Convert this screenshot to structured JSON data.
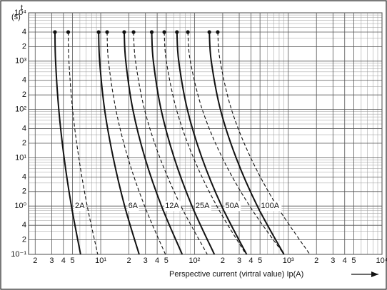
{
  "chart_data": {
    "type": "line",
    "ylabel": "t",
    "yunit": "(s)",
    "xlabel": "Perspective current (virtral value) Ip(A)",
    "xscale": "log",
    "yscale": "log",
    "grid": true,
    "color": "#111111",
    "xlim": [
      1.7,
      10000
    ],
    "ylim": [
      0.1,
      10000
    ],
    "xticks": [
      2,
      3,
      4,
      5,
      {
        "value": 10,
        "label": "10¹"
      },
      {
        "value": 20,
        "label": "2"
      },
      {
        "value": 30,
        "label": "3"
      },
      {
        "value": 40,
        "label": "4"
      },
      {
        "value": 50,
        "label": "5"
      },
      {
        "value": 100,
        "label": "10²"
      },
      {
        "value": 200,
        "label": "2"
      },
      {
        "value": 300,
        "label": "3"
      },
      {
        "value": 400,
        "label": "4"
      },
      {
        "value": 500,
        "label": "5"
      },
      {
        "value": 1000,
        "label": "10³"
      },
      {
        "value": 2000,
        "label": "2"
      },
      {
        "value": 3000,
        "label": "3"
      },
      {
        "value": 4000,
        "label": "4"
      },
      {
        "value": 5000,
        "label": "5"
      },
      {
        "value": 10000,
        "label": "10⁴"
      }
    ],
    "xminorticks": [
      6,
      7,
      8,
      9,
      60,
      70,
      80,
      90,
      600,
      700,
      800,
      900,
      6000,
      7000,
      8000,
      9000
    ],
    "yticks": [
      {
        "value": 10000,
        "label": "10⁴"
      },
      {
        "value": 4000,
        "label": "4"
      },
      {
        "value": 2000,
        "label": "2"
      },
      {
        "value": 1000,
        "label": "10³"
      },
      {
        "value": 400,
        "label": "4"
      },
      {
        "value": 200,
        "label": "2"
      },
      {
        "value": 100,
        "label": "10²"
      },
      {
        "value": 40,
        "label": "4"
      },
      {
        "value": 20,
        "label": "2"
      },
      {
        "value": 10,
        "label": "10¹"
      },
      4,
      2,
      {
        "value": 1,
        "label": "10⁰"
      },
      {
        "value": 0.4,
        "label": "4"
      },
      {
        "value": 0.2,
        "label": "2"
      },
      {
        "value": 0.1,
        "label": "10⁻¹"
      }
    ],
    "yminorticks": [
      3000,
      5000,
      6000,
      7000,
      8000,
      9000,
      300,
      500,
      600,
      700,
      800,
      900,
      30,
      50,
      60,
      70,
      80,
      90,
      3,
      5,
      6,
      7,
      8,
      9,
      0.3,
      0.5,
      0.6,
      0.7,
      0.8,
      0.9
    ],
    "series": [
      {
        "name": "2A",
        "curves": [
          {
            "style": "solid",
            "x": [
              3.25,
              3.3,
              3.57,
              4.07,
              4.87,
              6.1
            ],
            "values": [
              4000,
              1000,
              100,
              10,
              1,
              0.1
            ]
          },
          {
            "style": "dashed",
            "x": [
              4.5,
              4.58,
              5.01,
              5.84,
              7.18,
              9.3
            ],
            "values": [
              4000,
              1000,
              100,
              10,
              1,
              0.1
            ]
          }
        ]
      },
      {
        "name": "6A",
        "curves": [
          {
            "style": "solid",
            "x": [
              9.5,
              9.74,
              11.0,
              13.6,
              18.0,
              25.7
            ],
            "values": [
              4000,
              1000,
              100,
              10,
              1,
              0.1
            ]
          },
          {
            "style": "dashed",
            "x": [
              11.7,
              12.1,
              14.5,
              19.5,
              29.4,
              49
            ],
            "values": [
              4000,
              1000,
              100,
              10,
              1,
              0.1
            ]
          }
        ]
      },
      {
        "name": "12A",
        "curves": [
          {
            "style": "solid",
            "x": [
              17.8,
              18.5,
              22.0,
              29.6,
              44.5,
              74
            ],
            "values": [
              4000,
              1000,
              100,
              10,
              1,
              0.1
            ]
          },
          {
            "style": "dashed",
            "x": [
              22.4,
              23.5,
              29.3,
              42.8,
              71.8,
              137
            ],
            "values": [
              4000,
              1000,
              100,
              10,
              1,
              0.1
            ]
          }
        ]
      },
      {
        "name": "25A",
        "curves": [
          {
            "style": "solid",
            "x": [
              35,
              36.4,
              44.0,
              60.7,
              94.1,
              163
            ],
            "values": [
              4000,
              1000,
              100,
              10,
              1,
              0.1
            ]
          },
          {
            "style": "dashed",
            "x": [
              47.6,
              50.1,
              64.2,
              97.6,
              173,
              354
            ],
            "values": [
              4000,
              1000,
              100,
              10,
              1,
              0.1
            ]
          }
        ]
      },
      {
        "name": "50A",
        "curves": [
          {
            "style": "solid",
            "x": [
              65,
              67.9,
              83.9,
              120,
              195,
              360
            ],
            "values": [
              4000,
              1000,
              100,
              10,
              1,
              0.1
            ]
          },
          {
            "style": "dashed",
            "x": [
              85,
              90.3,
              121,
              198,
              388,
              900
            ],
            "values": [
              4000,
              1000,
              100,
              10,
              1,
              0.1
            ]
          }
        ]
      },
      {
        "name": "100A",
        "curves": [
          {
            "style": "solid",
            "x": [
              144,
              151,
              189,
              278,
              468,
              900
            ],
            "values": [
              4000,
              1000,
              100,
              10,
              1,
              0.1
            ]
          },
          {
            "style": "dashed",
            "x": [
              177,
              188,
              248,
              398,
              758,
              1700
            ],
            "values": [
              4000,
              1000,
              100,
              10,
              1,
              0.1
            ]
          }
        ]
      }
    ]
  }
}
